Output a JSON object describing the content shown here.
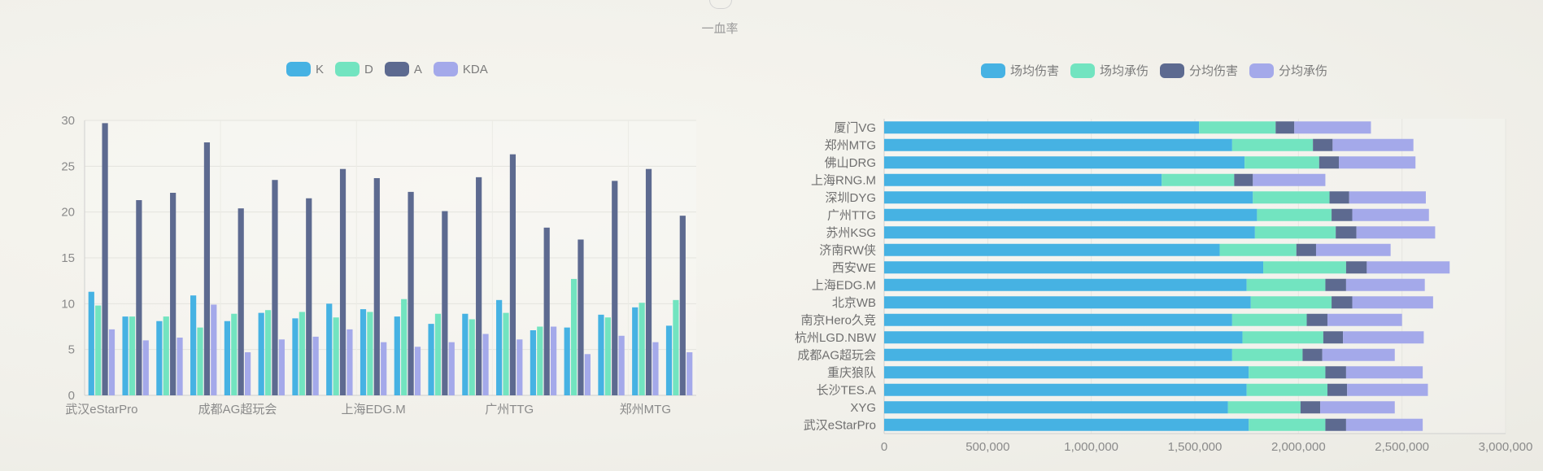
{
  "header": {
    "caption": "一血率"
  },
  "colors": {
    "K": "#46b2e3",
    "D": "#72e4c0",
    "A": "#5d6a90",
    "KDA": "#a4a9ea"
  },
  "chart_data": [
    {
      "type": "bar",
      "legend": [
        "K",
        "D",
        "A",
        "KDA"
      ],
      "categories": [
        "武汉eStarPro",
        "XYG",
        "长沙TES.A",
        "重庆狼队",
        "成都AG超玩会",
        "杭州LGD.NBW",
        "南京Hero久竞",
        "北京WB",
        "上海EDG.M",
        "西安WE",
        "济南RW侠",
        "苏州KSG",
        "广州TTG",
        "深圳DYG",
        "上海RNG.M",
        "佛山DRG",
        "郑州MTG",
        "厦门VG"
      ],
      "x_tick_labels": [
        "武汉eStarPro",
        "成都AG超玩会",
        "上海EDG.M",
        "广州TTG",
        "郑州MTG"
      ],
      "ylim": [
        0,
        30
      ],
      "y_ticks": [
        "0",
        "5",
        "10",
        "15",
        "20",
        "25",
        "30"
      ],
      "series": [
        {
          "name": "K",
          "values": [
            11.3,
            8.6,
            8.1,
            10.9,
            8.1,
            9.0,
            8.4,
            10.0,
            9.4,
            8.6,
            7.8,
            8.9,
            10.4,
            7.1,
            7.4,
            8.8,
            9.6,
            7.6
          ]
        },
        {
          "name": "D",
          "values": [
            9.8,
            8.6,
            8.6,
            7.4,
            8.9,
            9.3,
            9.1,
            8.5,
            9.1,
            10.5,
            8.9,
            8.3,
            9.0,
            7.5,
            12.7,
            8.5,
            10.1,
            10.4
          ]
        },
        {
          "name": "A",
          "values": [
            29.7,
            21.3,
            22.1,
            27.6,
            20.4,
            23.5,
            21.5,
            24.7,
            23.7,
            22.2,
            20.1,
            23.8,
            26.3,
            18.3,
            17.0,
            23.4,
            24.7,
            19.6
          ]
        },
        {
          "name": "KDA",
          "values": [
            7.2,
            6.0,
            6.3,
            9.9,
            4.7,
            6.1,
            6.4,
            7.2,
            5.8,
            5.3,
            5.8,
            6.7,
            6.1,
            7.5,
            4.5,
            6.5,
            5.8,
            4.7
          ]
        }
      ]
    },
    {
      "type": "bar",
      "orientation": "horizontal",
      "stacked": true,
      "legend": [
        "场均伤害",
        "场均承伤",
        "分均伤害",
        "分均承伤"
      ],
      "categories": [
        "厦门VG",
        "郑州MTG",
        "佛山DRG",
        "上海RNG.M",
        "深圳DYG",
        "广州TTG",
        "苏州KSG",
        "济南RW侠",
        "西安WE",
        "上海EDG.M",
        "北京WB",
        "南京Hero久竞",
        "杭州LGD.NBW",
        "成都AG超玩会",
        "重庆狼队",
        "长沙TES.A",
        "XYG",
        "武汉eStarPro"
      ],
      "xlim": [
        0,
        3000000
      ],
      "x_ticks": [
        "0",
        "500,000",
        "1,000,000",
        "1,500,000",
        "2,000,000",
        "2,500,000",
        "3,000,000"
      ],
      "series": [
        {
          "name": "场均伤害",
          "values": [
            1520000,
            1680000,
            1740000,
            1340000,
            1780000,
            1800000,
            1790000,
            1620000,
            1830000,
            1750000,
            1770000,
            1680000,
            1730000,
            1680000,
            1760000,
            1750000,
            1660000,
            1760000
          ]
        },
        {
          "name": "场均承伤",
          "values": [
            370000,
            390000,
            360000,
            350000,
            370000,
            360000,
            390000,
            370000,
            400000,
            380000,
            390000,
            360000,
            390000,
            340000,
            370000,
            390000,
            350000,
            370000
          ]
        },
        {
          "name": "分均伤害",
          "values": [
            90000,
            95000,
            95000,
            90000,
            95000,
            100000,
            100000,
            95000,
            100000,
            100000,
            100000,
            100000,
            95000,
            95000,
            100000,
            95000,
            95000,
            100000
          ]
        },
        {
          "name": "分均承伤",
          "values": [
            370000,
            390000,
            370000,
            350000,
            370000,
            370000,
            380000,
            360000,
            400000,
            380000,
            390000,
            360000,
            390000,
            350000,
            370000,
            390000,
            360000,
            370000
          ]
        }
      ]
    }
  ]
}
